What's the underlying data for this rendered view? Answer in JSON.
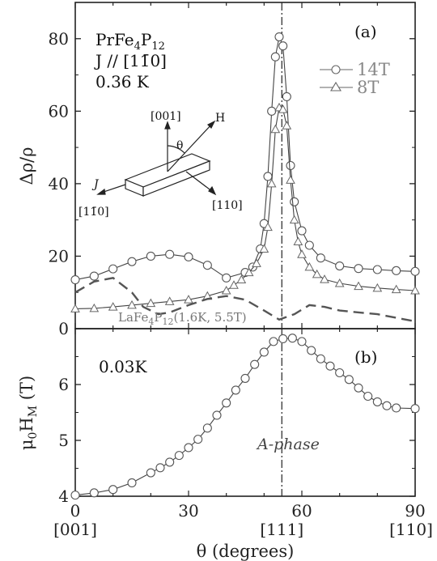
{
  "chart_data": [
    {
      "panel_label": "(a)",
      "type": "line",
      "ylabel": "Δρ/ρ",
      "xlim": [
        0,
        90
      ],
      "ylim": [
        0,
        90
      ],
      "yticks": [
        0,
        20,
        40,
        60,
        80
      ],
      "xticks": [
        0,
        30,
        60,
        90
      ],
      "annotations": {
        "sample": "PrFe4P12",
        "sample_parts": [
          "PrFe",
          "4",
          "P",
          "12"
        ],
        "current": "J // [11̄0]",
        "temperature": "0.36 K"
      },
      "inset": {
        "labels": {
          "dir001": "[001]",
          "H": "H",
          "theta": "θ",
          "J": "J",
          "dir1m10": "[11̄0]",
          "dir110": "[110]"
        }
      },
      "series": [
        {
          "name": "14T",
          "marker": "circle",
          "x": [
            0,
            5,
            10,
            15,
            20,
            25,
            30,
            35,
            40,
            45,
            47,
            49,
            50,
            51,
            52,
            53,
            54,
            55,
            56,
            57,
            58,
            60,
            62,
            65,
            70,
            75,
            80,
            85,
            90
          ],
          "y": [
            13.5,
            14.5,
            16.5,
            18.5,
            20.0,
            20.5,
            19.8,
            17.5,
            14.0,
            15.5,
            17.0,
            22.0,
            29.0,
            42.0,
            60.0,
            75.0,
            80.5,
            78.0,
            64.0,
            45.0,
            35.0,
            27.0,
            23.0,
            19.5,
            17.3,
            16.6,
            16.3,
            16.0,
            15.8
          ]
        },
        {
          "name": "8T",
          "marker": "triangle",
          "x": [
            0,
            5,
            10,
            15,
            20,
            25,
            30,
            35,
            40,
            42,
            44,
            46,
            48,
            50,
            51,
            52,
            53,
            54,
            55,
            56,
            57,
            58,
            59,
            60,
            62,
            64,
            66,
            70,
            75,
            80,
            85,
            90
          ],
          "y": [
            5.5,
            5.6,
            6.0,
            6.5,
            7.0,
            7.5,
            8.0,
            9.0,
            10.5,
            12.0,
            13.5,
            15.5,
            18.0,
            22.0,
            28.0,
            40.0,
            55.0,
            61.0,
            60.5,
            56.0,
            41.0,
            30.0,
            24.0,
            20.5,
            17.0,
            15.0,
            13.6,
            12.5,
            11.7,
            11.2,
            10.8,
            10.5
          ]
        },
        {
          "name": "LaFe4P12 (1.6K, 5.5T)",
          "label_parts": [
            "LaFe",
            "4",
            "P",
            "12",
            "(1.6K, 5.5T)"
          ],
          "style": "dashed",
          "x": [
            0,
            5,
            10,
            15,
            18,
            22,
            25,
            30,
            35,
            40,
            45,
            50,
            54,
            58,
            62,
            66,
            70,
            75,
            80,
            85,
            90
          ],
          "y": [
            10.0,
            13.0,
            14.0,
            10.0,
            6.0,
            4.0,
            4.5,
            6.5,
            8.2,
            9.0,
            8.0,
            5.0,
            2.5,
            4.0,
            6.5,
            6.0,
            5.0,
            4.5,
            4.0,
            3.0,
            2.0
          ]
        }
      ]
    },
    {
      "panel_label": "(b)",
      "type": "line",
      "ylabel": "μ0HM (T)",
      "ylabel_parts": [
        "μ",
        "0",
        "H",
        "M",
        " (T)"
      ],
      "xlabel": "θ (degrees)",
      "xlim": [
        0,
        90
      ],
      "ylim": [
        4,
        7
      ],
      "yticks": [
        4,
        5,
        6
      ],
      "xticks": [
        0,
        30,
        60,
        90
      ],
      "x_categories": [
        {
          "x": 0,
          "label": "[001]"
        },
        {
          "x": 54.7,
          "label": "[111]"
        },
        {
          "x": 90,
          "label": "[110]"
        }
      ],
      "annotations": {
        "temperature": "0.03K",
        "phase": "A-phase"
      },
      "series": [
        {
          "name": "",
          "marker": "circle",
          "x": [
            0,
            5,
            10,
            15,
            20,
            22.5,
            25,
            27.5,
            30,
            32.5,
            35,
            37.5,
            40,
            42.5,
            45,
            47.5,
            50,
            52.5,
            55,
            57.5,
            60,
            62.5,
            65,
            67.5,
            70,
            72.5,
            75,
            77.5,
            80,
            82.5,
            85,
            90
          ],
          "y": [
            4.02,
            4.06,
            4.12,
            4.24,
            4.42,
            4.51,
            4.61,
            4.73,
            4.87,
            5.02,
            5.22,
            5.45,
            5.67,
            5.9,
            6.11,
            6.36,
            6.58,
            6.77,
            6.82,
            6.83,
            6.77,
            6.61,
            6.46,
            6.33,
            6.21,
            6.09,
            5.94,
            5.79,
            5.69,
            5.62,
            5.58,
            5.57
          ]
        }
      ]
    }
  ],
  "reference_line": {
    "x": 54.7,
    "style": "dash-dot"
  }
}
